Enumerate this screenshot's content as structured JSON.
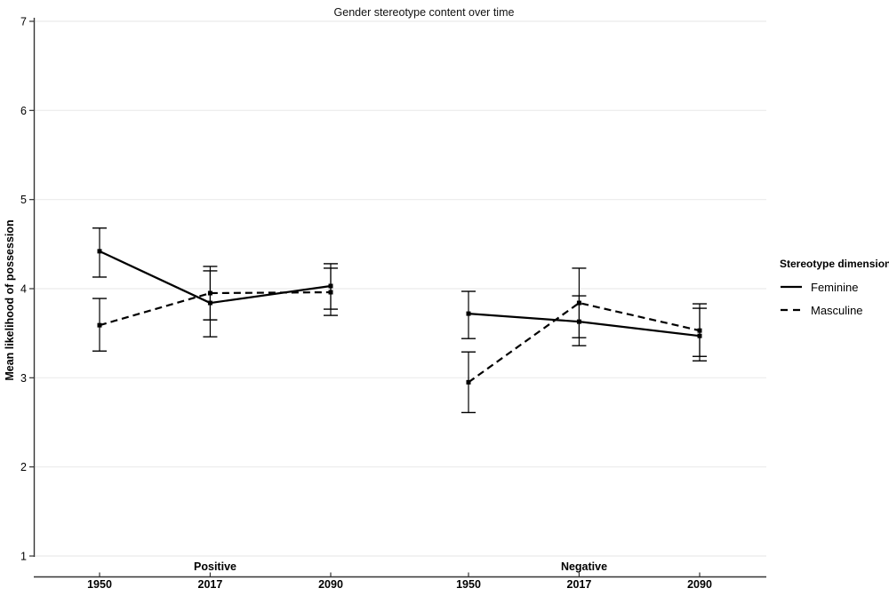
{
  "chart_data": {
    "type": "line",
    "title": "Gender stereotype content over time",
    "ylabel": "Mean likelihood of possession",
    "xlabel": "",
    "ylim": [
      1,
      7
    ],
    "yticks": [
      "1",
      "2",
      "3",
      "4",
      "5",
      "6",
      "7"
    ],
    "categories": [
      "1950",
      "2017",
      "2090"
    ],
    "grid": "horizontal",
    "legend": {
      "title": "Stereotype dimension",
      "position": "right",
      "entries": [
        "Feminine",
        "Masculine"
      ]
    },
    "panels": [
      {
        "label": "Positive",
        "series": [
          {
            "name": "Feminine",
            "line_style": "solid",
            "points": [
              {
                "x": "1950",
                "mean": 4.42,
                "ci_low": 4.13,
                "ci_high": 4.68
              },
              {
                "x": "2017",
                "mean": 3.84,
                "ci_low": 3.46,
                "ci_high": 4.2
              },
              {
                "x": "2090",
                "mean": 4.03,
                "ci_low": 3.77,
                "ci_high": 4.28
              }
            ]
          },
          {
            "name": "Masculine",
            "line_style": "dashed",
            "points": [
              {
                "x": "1950",
                "mean": 3.59,
                "ci_low": 3.3,
                "ci_high": 3.89
              },
              {
                "x": "2017",
                "mean": 3.95,
                "ci_low": 3.65,
                "ci_high": 4.25
              },
              {
                "x": "2090",
                "mean": 3.96,
                "ci_low": 3.7,
                "ci_high": 4.23
              }
            ]
          }
        ]
      },
      {
        "label": "Negative",
        "series": [
          {
            "name": "Feminine",
            "line_style": "solid",
            "points": [
              {
                "x": "1950",
                "mean": 3.72,
                "ci_low": 3.44,
                "ci_high": 3.97
              },
              {
                "x": "2017",
                "mean": 3.63,
                "ci_low": 3.36,
                "ci_high": 3.92
              },
              {
                "x": "2090",
                "mean": 3.47,
                "ci_low": 3.19,
                "ci_high": 3.78
              }
            ]
          },
          {
            "name": "Masculine",
            "line_style": "dashed",
            "points": [
              {
                "x": "1950",
                "mean": 2.95,
                "ci_low": 2.61,
                "ci_high": 3.29
              },
              {
                "x": "2017",
                "mean": 3.84,
                "ci_low": 3.45,
                "ci_high": 4.23
              },
              {
                "x": "2090",
                "mean": 3.53,
                "ci_low": 3.24,
                "ci_high": 3.83
              }
            ]
          }
        ]
      }
    ],
    "colors": {
      "series": "#000000",
      "axis": "#333333",
      "gridline": "#ebebeb",
      "text": "#000000"
    }
  }
}
